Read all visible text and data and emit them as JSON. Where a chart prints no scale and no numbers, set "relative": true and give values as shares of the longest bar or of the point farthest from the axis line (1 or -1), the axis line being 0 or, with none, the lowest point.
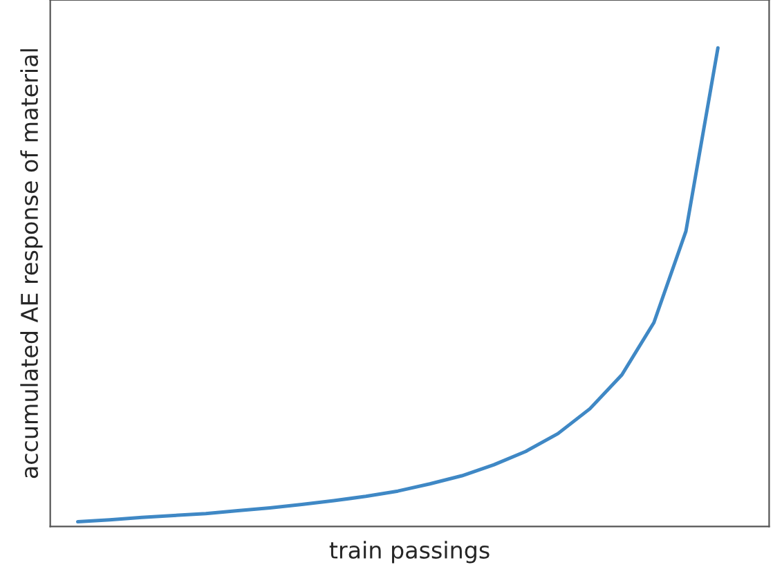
{
  "chart_data": {
    "type": "line",
    "relative": true,
    "xlabel": "train passings",
    "ylabel": "accumulated AE response of material",
    "categories": [
      null,
      null,
      null,
      null,
      null,
      null,
      null,
      null,
      null,
      null,
      null,
      null,
      null,
      null,
      null,
      null,
      null,
      null,
      null,
      null,
      null
    ],
    "series": [
      {
        "color": "#3f88c5",
        "values": [
          0.01,
          0.014,
          0.019,
          0.023,
          0.027,
          0.033,
          0.039,
          0.046,
          0.054,
          0.063,
          0.074,
          0.089,
          0.106,
          0.129,
          0.157,
          0.194,
          0.246,
          0.317,
          0.426,
          0.617,
          1.0
        ]
      }
    ],
    "grid": false,
    "marker": "none",
    "line_style": "solid"
  }
}
